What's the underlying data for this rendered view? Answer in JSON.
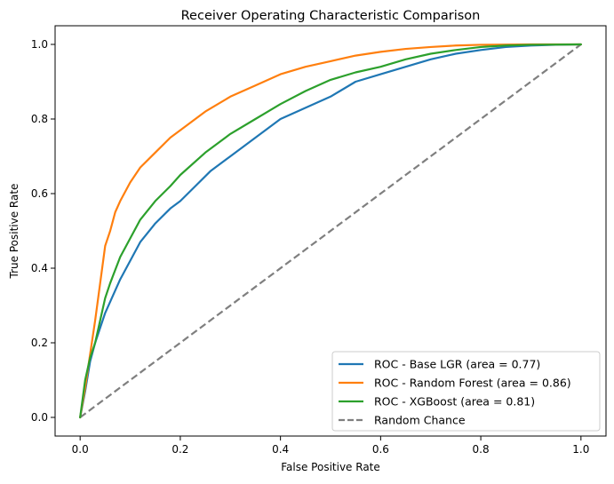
{
  "chart_data": {
    "type": "line",
    "title": "Receiver Operating Characteristic Comparison",
    "xlabel": "False Positive Rate",
    "ylabel": "True Positive Rate",
    "xlim": [
      -0.05,
      1.05
    ],
    "ylim": [
      -0.05,
      1.05
    ],
    "xticks": [
      "0.0",
      "0.2",
      "0.4",
      "0.6",
      "0.8",
      "1.0"
    ],
    "yticks": [
      "0.0",
      "0.2",
      "0.4",
      "0.6",
      "0.8",
      "1.0"
    ],
    "grid": false,
    "legend_position": "lower-right",
    "series": [
      {
        "name": "ROC - Base LGR (area = 0.77)",
        "color": "#1f77b4",
        "style": "solid",
        "x": [
          0.0,
          0.01,
          0.02,
          0.03,
          0.04,
          0.05,
          0.06,
          0.08,
          0.1,
          0.12,
          0.15,
          0.18,
          0.2,
          0.23,
          0.26,
          0.3,
          0.35,
          0.4,
          0.45,
          0.5,
          0.55,
          0.6,
          0.65,
          0.7,
          0.75,
          0.8,
          0.85,
          0.9,
          0.95,
          1.0
        ],
        "y": [
          0.0,
          0.07,
          0.15,
          0.2,
          0.24,
          0.28,
          0.31,
          0.37,
          0.42,
          0.47,
          0.52,
          0.56,
          0.58,
          0.62,
          0.66,
          0.7,
          0.75,
          0.8,
          0.83,
          0.86,
          0.9,
          0.92,
          0.94,
          0.96,
          0.975,
          0.985,
          0.993,
          0.997,
          0.999,
          1.0
        ]
      },
      {
        "name": "ROC - Random Forest (area = 0.86)",
        "color": "#ff7f0e",
        "style": "solid",
        "x": [
          0.0,
          0.01,
          0.02,
          0.03,
          0.04,
          0.05,
          0.06,
          0.07,
          0.08,
          0.1,
          0.12,
          0.15,
          0.18,
          0.2,
          0.25,
          0.3,
          0.35,
          0.4,
          0.45,
          0.5,
          0.55,
          0.6,
          0.65,
          0.7,
          0.75,
          0.8,
          0.9,
          1.0
        ],
        "y": [
          0.0,
          0.08,
          0.17,
          0.26,
          0.36,
          0.46,
          0.5,
          0.55,
          0.58,
          0.63,
          0.67,
          0.71,
          0.75,
          0.77,
          0.82,
          0.86,
          0.89,
          0.92,
          0.94,
          0.955,
          0.97,
          0.98,
          0.988,
          0.993,
          0.997,
          0.999,
          1.0,
          1.0
        ]
      },
      {
        "name": "ROC - XGBoost (area = 0.81)",
        "color": "#2ca02c",
        "style": "solid",
        "x": [
          0.0,
          0.01,
          0.02,
          0.03,
          0.04,
          0.05,
          0.06,
          0.08,
          0.1,
          0.12,
          0.15,
          0.18,
          0.2,
          0.25,
          0.3,
          0.35,
          0.4,
          0.45,
          0.5,
          0.55,
          0.6,
          0.65,
          0.7,
          0.75,
          0.8,
          0.85,
          0.9,
          1.0
        ],
        "y": [
          0.0,
          0.1,
          0.16,
          0.2,
          0.26,
          0.32,
          0.36,
          0.43,
          0.48,
          0.53,
          0.58,
          0.62,
          0.65,
          0.71,
          0.76,
          0.8,
          0.84,
          0.875,
          0.905,
          0.925,
          0.94,
          0.96,
          0.975,
          0.985,
          0.993,
          0.997,
          0.999,
          1.0
        ]
      },
      {
        "name": "Random Chance",
        "color": "#7f7f7f",
        "style": "dashed",
        "x": [
          0.0,
          1.0
        ],
        "y": [
          0.0,
          1.0
        ]
      }
    ]
  }
}
